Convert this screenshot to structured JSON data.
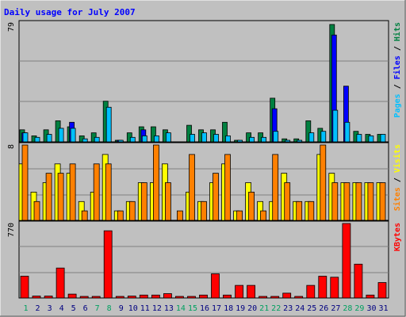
{
  "chart_data": [
    {
      "type": "bar",
      "panel": "top",
      "title": "Daily usage for July 2007",
      "y_max_label": "79",
      "ylim": [
        0,
        79
      ],
      "categories": [
        "1",
        "2",
        "3",
        "4",
        "5",
        "6",
        "7",
        "8",
        "9",
        "10",
        "11",
        "12",
        "13",
        "14",
        "15",
        "16",
        "17",
        "18",
        "19",
        "20",
        "21",
        "22",
        "23",
        "24",
        "25",
        "26",
        "27",
        "28",
        "29",
        "30",
        "31"
      ],
      "weekend_days": [
        "1",
        "7",
        "8",
        "14",
        "15",
        "21",
        "22",
        "28",
        "29"
      ],
      "series": [
        {
          "name": "Hits",
          "color": "#008040",
          "values": [
            8,
            4,
            8,
            14,
            10,
            4,
            6,
            27,
            1,
            6,
            10,
            10,
            8,
            0,
            11,
            8,
            8,
            13,
            1,
            6,
            6,
            29,
            2,
            2,
            14,
            9,
            78,
            0,
            7,
            5,
            5
          ]
        },
        {
          "name": "Files",
          "color": "#0000ff",
          "values": [
            6,
            0,
            0,
            0,
            13,
            0,
            0,
            0,
            1,
            0,
            8,
            0,
            0,
            0,
            0,
            0,
            0,
            0,
            0,
            0,
            0,
            22,
            0,
            0,
            0,
            0,
            71,
            37,
            0,
            0,
            0
          ]
        },
        {
          "name": "Pages",
          "color": "#00c0ff",
          "values": [
            6,
            3,
            5,
            9,
            9,
            2,
            3,
            23,
            1,
            3,
            4,
            4,
            6,
            0,
            5,
            6,
            5,
            4,
            1,
            3,
            3,
            7,
            1,
            1,
            6,
            7,
            21,
            13,
            5,
            4,
            5
          ]
        }
      ],
      "legend_parts": [
        {
          "text": "Pages",
          "color": "#00c0ff"
        },
        {
          "text": " / ",
          "color": "#000000"
        },
        {
          "text": "Files",
          "color": "#0000ff"
        },
        {
          "text": " / ",
          "color": "#000000"
        },
        {
          "text": "Hits",
          "color": "#008040"
        }
      ]
    },
    {
      "type": "bar",
      "panel": "middle",
      "y_max_label": "8",
      "ylim": [
        0,
        8
      ],
      "categories": [
        "1",
        "2",
        "3",
        "4",
        "5",
        "6",
        "7",
        "8",
        "9",
        "10",
        "11",
        "12",
        "13",
        "14",
        "15",
        "16",
        "17",
        "18",
        "19",
        "20",
        "21",
        "22",
        "23",
        "24",
        "25",
        "26",
        "27",
        "28",
        "29",
        "30",
        "31"
      ],
      "series": [
        {
          "name": "Visits",
          "color": "#ffff00",
          "values": [
            6,
            3,
            4,
            6,
            5,
            2,
            3,
            7,
            1,
            2,
            4,
            4,
            6,
            0,
            3,
            2,
            4,
            6,
            1,
            4,
            2,
            2,
            5,
            2,
            2,
            7,
            5,
            4,
            4,
            4,
            4
          ]
        },
        {
          "name": "Sites",
          "color": "#ff8000",
          "values": [
            8,
            2,
            5,
            5,
            6,
            1,
            6,
            6,
            1,
            2,
            4,
            8,
            4,
            1,
            7,
            2,
            5,
            7,
            1,
            3,
            1,
            7,
            4,
            2,
            2,
            8,
            4,
            4,
            4,
            4,
            4
          ]
        }
      ],
      "legend_parts": [
        {
          "text": "Sites",
          "color": "#ff8000"
        },
        {
          "text": " / ",
          "color": "#000000"
        },
        {
          "text": "Visits",
          "color": "#ffff00"
        }
      ]
    },
    {
      "type": "bar",
      "panel": "bottom",
      "y_max_label": "770",
      "ylim": [
        0,
        770
      ],
      "categories": [
        "1",
        "2",
        "3",
        "4",
        "5",
        "6",
        "7",
        "8",
        "9",
        "10",
        "11",
        "12",
        "13",
        "14",
        "15",
        "16",
        "17",
        "18",
        "19",
        "20",
        "21",
        "22",
        "23",
        "24",
        "25",
        "26",
        "27",
        "28",
        "29",
        "30",
        "31"
      ],
      "series": [
        {
          "name": "KBytes",
          "color": "#ff0000",
          "values": [
            225,
            20,
            20,
            310,
            40,
            10,
            10,
            695,
            10,
            20,
            30,
            30,
            45,
            10,
            10,
            30,
            250,
            30,
            130,
            130,
            10,
            10,
            50,
            10,
            130,
            225,
            215,
            770,
            350,
            30,
            160
          ]
        }
      ],
      "legend_parts": [
        {
          "text": "KBytes",
          "color": "#ff0000"
        }
      ]
    }
  ],
  "colors": {
    "background": "#c0c0c0",
    "plot_bg": "#c0c0c0",
    "title": "#0000ff",
    "weekday_label": "#000080",
    "weekend_label": "#00a060",
    "grid": "#808080"
  }
}
